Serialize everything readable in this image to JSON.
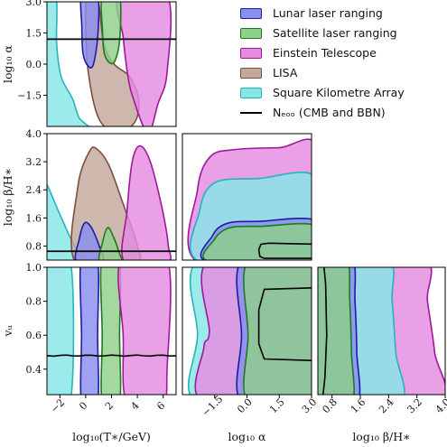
{
  "chart_data": {
    "type": "scatter",
    "subtype": "corner_plot_confidence_regions",
    "grid": false,
    "legend_position": "top-right",
    "parameters": [
      {
        "key": "T",
        "label": "log₁₀(T∗/GeV)",
        "range": [
          -3,
          7
        ],
        "ticks": [
          "−2",
          "0",
          "2",
          "4",
          "6"
        ]
      },
      {
        "key": "alpha",
        "label": "log₁₀ α",
        "range": [
          -3,
          3
        ],
        "ticks": [
          "−1.5",
          "0.0",
          "1.5",
          "3.0"
        ],
        "ticks_left": [
          "−1.5",
          "0.0",
          "1.5",
          "3.0"
        ]
      },
      {
        "key": "beta",
        "label": "log₁₀ β/H∗",
        "range": [
          0.4,
          4.0
        ],
        "ticks": [
          "0.8",
          "1.6",
          "2.4",
          "3.2",
          "4.0"
        ],
        "ticks_left": [
          "0.8",
          "1.6",
          "2.4",
          "3.2",
          "4.0"
        ]
      },
      {
        "key": "vw",
        "label": "vᵤ",
        "range": [
          0.25,
          1.0
        ],
        "ticks": [
          "0.4",
          "0.6",
          "0.8",
          "1.0"
        ],
        "ticks_left": [
          "0.4",
          "0.6",
          "0.8",
          "1.0"
        ]
      }
    ],
    "series": [
      {
        "name": "Lunar laser ranging",
        "fill": "#8a8ef0",
        "edge": "#1d1d9f",
        "T_range": [
          -0.3,
          0.9
        ],
        "alpha_min": -0.05,
        "beta_max": 1.5
      },
      {
        "name": "Satellite laser ranging",
        "fill": "#8fd08a",
        "edge": "#1f7a1f",
        "T_range": [
          1.3,
          2.6
        ],
        "alpha_min": 0.1,
        "beta_max": 1.35
      },
      {
        "name": "Einstein Telescope",
        "fill": "#e58be0",
        "edge": "#a0179c",
        "T_range": [
          2.6,
          6.3
        ],
        "alpha_min": -0.2,
        "beta_max": 3.6
      },
      {
        "name": "LISA",
        "fill": "#c3a79a",
        "edge": "#7a4f3e",
        "T_range": [
          -0.8,
          4.0
        ],
        "beta_max": 3.5
      },
      {
        "name": "Square Kilometre Array",
        "fill": "#86e6e6",
        "edge": "#26b3bd",
        "T_range": [
          -3,
          -1.3
        ],
        "alpha_min": -2.0,
        "beta_max": 2.7
      },
      {
        "name": "Nₑₒₒ (CMB and BBN)",
        "line": "#000000",
        "alpha_bound": 1.2,
        "beta_bound": 0.65,
        "vw_value": 0.48
      }
    ]
  }
}
